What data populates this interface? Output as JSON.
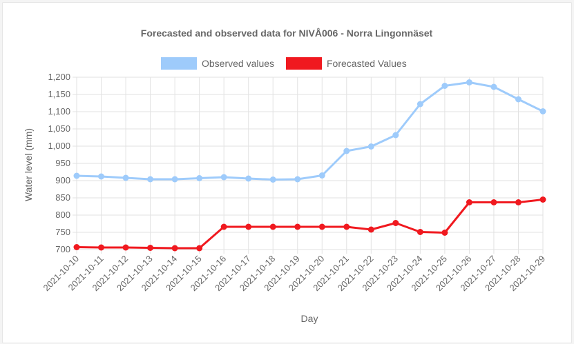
{
  "chart_data": {
    "type": "line",
    "title": "Forecasted and observed data for NIVÅ006 - Norra Lingonnäset",
    "xlabel": "Day",
    "ylabel": "Water level (mm)",
    "ylim": [
      700,
      1200
    ],
    "ytick_step": 50,
    "ytick_labels": [
      "700",
      "750",
      "800",
      "850",
      "900",
      "950",
      "1,000",
      "1,050",
      "1,100",
      "1,150",
      "1,200"
    ],
    "grid": true,
    "legend_position": "top",
    "categories": [
      "2021-10-10",
      "2021-10-11",
      "2021-10-12",
      "2021-10-13",
      "2021-10-14",
      "2021-10-15",
      "2021-10-16",
      "2021-10-17",
      "2021-10-18",
      "2021-10-19",
      "2021-10-20",
      "2021-10-21",
      "2021-10-22",
      "2021-10-23",
      "2021-10-24",
      "2021-10-25",
      "2021-10-26",
      "2021-10-27",
      "2021-10-28",
      "2021-10-29"
    ],
    "series": [
      {
        "name": "Observed values",
        "color": "#9ecbfb",
        "values": [
          914,
          912,
          908,
          904,
          904,
          907,
          910,
          906,
          903,
          904,
          915,
          986,
          999,
          1032,
          1122,
          1175,
          1185,
          1172,
          1136,
          1101
        ]
      },
      {
        "name": "Forecasted Values",
        "color": "#f0191f",
        "values": [
          707,
          706,
          706,
          705,
          704,
          704,
          766,
          766,
          766,
          766,
          766,
          766,
          758,
          777,
          751,
          749,
          837,
          837,
          837,
          845
        ]
      }
    ]
  }
}
